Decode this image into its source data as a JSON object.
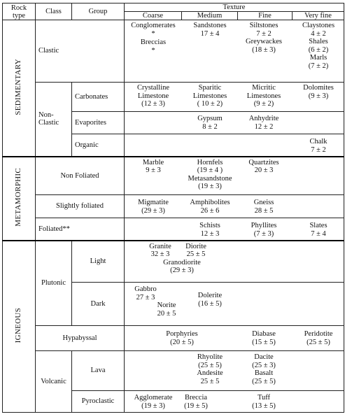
{
  "header": {
    "rock_type": "Rock type",
    "rock_type_line1": "Rock",
    "rock_type_line2": "type",
    "class": "Class",
    "group": "Group",
    "texture": "Texture",
    "coarse": "Coarse",
    "medium": "Medium",
    "fine": "Fine",
    "very_fine": "Very fine"
  },
  "rock_types": {
    "sedimentary": "SEDIMENTARY",
    "metamorphic": "METAMORPHIC",
    "igneous": "IGNEOUS"
  },
  "classes": {
    "clastic": "Clastic",
    "non_clastic_line1": "Non-",
    "non_clastic_line2": "Clastic",
    "non_foliated": "Non Foliated",
    "slightly_foliated": "Slightly foliated",
    "foliated": "Foliated**",
    "plutonic": "Plutonic",
    "hypabyssal": "Hypabyssal",
    "volcanic": "Volcanic"
  },
  "groups": {
    "carbonates": "Carbonates",
    "evaporites": "Evaporites",
    "organic": "Organic",
    "light": "Light",
    "dark": "Dark",
    "lava": "Lava",
    "pyroclastic": "Pyroclastic"
  },
  "cells": {
    "conglomerates": [
      "Conglomerates",
      "*"
    ],
    "breccias_sed": [
      "Breccias",
      "*"
    ],
    "sandstones": [
      "Sandstones",
      "17 ± 4"
    ],
    "siltstones": [
      "Siltstones",
      "7 ± 2"
    ],
    "greywackes": [
      "Greywackes",
      "(18 ± 3)"
    ],
    "claystones": [
      "Claystones",
      "4 ± 2"
    ],
    "shales": [
      "Shales",
      "(6 ± 2)"
    ],
    "marls": [
      "Marls",
      "(7 ± 2)"
    ],
    "crystalline_limestone": [
      "Crystalline",
      "Limestone",
      "(12 ± 3)"
    ],
    "sparitic_limestones": [
      "Sparitic",
      "Limestones",
      "( 10 ± 2)"
    ],
    "micritic_limestones": [
      "Micritic",
      "Limestones",
      "(9 ± 2)"
    ],
    "dolomites": [
      "Dolomites",
      "(9 ± 3)"
    ],
    "gypsum": [
      "Gypsum",
      "8 ± 2"
    ],
    "anhydrite": [
      "Anhydrite",
      "12 ± 2"
    ],
    "chalk": [
      "Chalk",
      "7 ± 2"
    ],
    "marble": [
      "Marble",
      "9 ± 3"
    ],
    "hornfels": [
      "Hornfels",
      "(19 ± 4 )"
    ],
    "metasandstone": [
      "Metasandstone",
      "(19 ± 3)"
    ],
    "quartzites": [
      "Quartzites",
      "20 ± 3"
    ],
    "migmatite": [
      "Migmatite",
      "(29 ± 3)"
    ],
    "amphibolites": [
      "Amphibolites",
      "26 ± 6"
    ],
    "gneiss": [
      "Gneiss",
      "28 ± 5"
    ],
    "schists": [
      "Schists",
      "12 ± 3"
    ],
    "phyllites": [
      "Phyllites",
      "(7 ± 3)"
    ],
    "slates": [
      "Slates",
      "7 ± 4"
    ],
    "granite": [
      "Granite",
      "32 ± 3"
    ],
    "diorite": [
      "Diorite",
      "25 ± 5"
    ],
    "granodiorite": [
      "Granodiorite",
      "(29 ± 3)"
    ],
    "gabbro": [
      "Gabbro",
      "27 ± 3"
    ],
    "norite": [
      "Norite",
      "20 ± 5"
    ],
    "dolerite": [
      "Dolerite",
      "(16 ± 5)"
    ],
    "porphyries": [
      "Porphyries",
      "(20 ± 5)"
    ],
    "diabase": [
      "Diabase",
      "(15 ± 5)"
    ],
    "peridotite": [
      "Peridotite",
      "(25 ± 5)"
    ],
    "rhyolite": [
      "Rhyolite",
      "(25 ± 5)"
    ],
    "andesite": [
      "Andesite",
      "25 ± 5"
    ],
    "dacite": [
      "Dacite",
      "(25 ± 3)"
    ],
    "basalt": [
      "Basalt",
      "(25 ± 5)"
    ],
    "agglomerate": [
      "Agglomerate",
      "(19 ± 3)"
    ],
    "breccia_volc": [
      "Breccia",
      "(19 ± 5)"
    ],
    "tuff": [
      "Tuff",
      "(13 ± 5)"
    ]
  }
}
